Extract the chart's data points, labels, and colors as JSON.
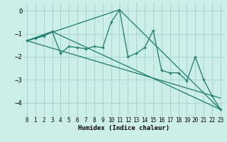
{
  "xlabel": "Humidex (Indice chaleur)",
  "ylabel": "",
  "background_color": "#cceee8",
  "grid_color": "#aad4ce",
  "line_color": "#1a7a6e",
  "xlim": [
    -0.5,
    23.5
  ],
  "ylim": [
    -4.6,
    0.35
  ],
  "xticks": [
    0,
    1,
    2,
    3,
    4,
    5,
    6,
    7,
    8,
    9,
    10,
    11,
    12,
    13,
    14,
    15,
    16,
    17,
    18,
    19,
    20,
    21,
    22,
    23
  ],
  "yticks": [
    0,
    -1,
    -2,
    -3,
    -4
  ],
  "series_main": {
    "x": [
      0,
      1,
      2,
      3,
      4,
      5,
      6,
      7,
      8,
      9,
      10,
      11,
      12,
      13,
      14,
      15,
      16,
      17,
      18,
      19,
      20,
      21,
      22,
      23
    ],
    "y": [
      -1.3,
      -1.2,
      -1.1,
      -0.9,
      -1.85,
      -1.55,
      -1.6,
      -1.65,
      -1.55,
      -1.6,
      -0.5,
      0.05,
      -2.0,
      -1.85,
      -1.6,
      -0.85,
      -2.6,
      -2.7,
      -2.7,
      -3.05,
      -2.0,
      -3.0,
      -3.7,
      -4.3
    ]
  },
  "series_straight": [
    {
      "x": [
        0,
        11,
        23
      ],
      "y": [
        -1.3,
        0.05,
        -4.3
      ]
    },
    {
      "x": [
        0,
        3,
        23
      ],
      "y": [
        -1.3,
        -0.9,
        -4.3
      ]
    },
    {
      "x": [
        0,
        23
      ],
      "y": [
        -1.3,
        -3.8
      ]
    }
  ]
}
